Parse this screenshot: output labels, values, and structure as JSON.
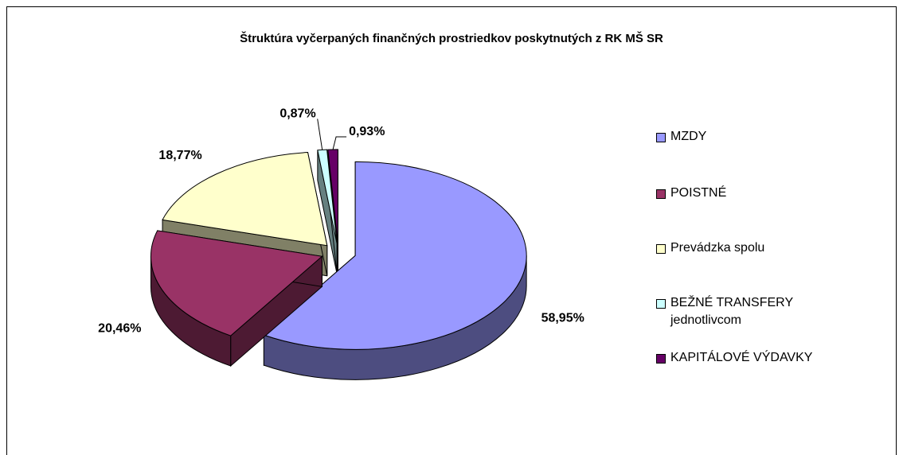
{
  "chart_data": {
    "type": "pie",
    "title": "Štruktúra vyčerpaných finančných prostriedkov poskytnutých z RK MŠ SR",
    "categories": [
      "MZDY",
      "POISTNÉ",
      "Prevádzka spolu",
      "BEŽNÉ TRANSFERY jednotlivcom",
      "KAPITÁLOVÉ VÝDAVKY"
    ],
    "values": [
      58.95,
      20.46,
      18.77,
      0.87,
      0.93
    ],
    "value_labels": [
      "58,95%",
      "20,46%",
      "18,77%",
      "0,87%",
      "0,93%"
    ],
    "colors": [
      "#9999ff",
      "#993366",
      "#ffffcc",
      "#ccffff",
      "#660066"
    ],
    "legend": "right"
  }
}
